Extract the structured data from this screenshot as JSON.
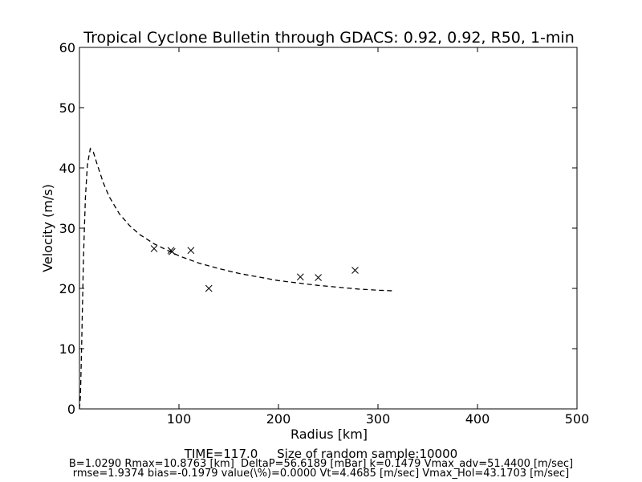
{
  "chart_data": {
    "type": "scatter",
    "title": "Tropical Cyclone Bulletin through GDACS: 0.92, 0.92, R50, 1-min",
    "xlabel": "Radius [km]",
    "ylabel": "Velocity (m/s)",
    "xlim": [
      0,
      500
    ],
    "ylim": [
      0,
      60
    ],
    "xticks": [
      100,
      200,
      300,
      400,
      500
    ],
    "yticks": [
      0,
      10,
      20,
      30,
      40,
      50,
      60
    ],
    "grid": false,
    "legend": "none",
    "series": [
      {
        "marker": "x",
        "x": [
          75,
          92,
          93,
          112,
          130,
          222,
          240,
          277
        ],
        "y": [
          26.6,
          26.3,
          26.1,
          26.3,
          20.0,
          21.9,
          21.8,
          23.0
        ]
      },
      {
        "style": "dashed-line",
        "x": [
          0,
          1,
          2,
          4,
          6,
          8,
          10.88,
          14,
          18,
          24,
          30,
          40,
          50,
          60,
          75,
          90,
          100,
          120,
          140,
          160,
          180,
          200,
          220,
          240,
          260,
          280,
          300,
          315
        ],
        "y": [
          0,
          2,
          9,
          25,
          35,
          40.5,
          43.2,
          42.6,
          40.5,
          37.5,
          35.2,
          32.4,
          30.5,
          29.0,
          27.4,
          26.2,
          25.4,
          24.2,
          23.3,
          22.5,
          21.9,
          21.3,
          20.9,
          20.5,
          20.2,
          19.9,
          19.7,
          19.6
        ]
      }
    ]
  },
  "footer": {
    "time": "TIME=117.0     Size of random sample:10000",
    "line1": "B=1.0290 Rmax=10.8763 [km]  DeltaP=56.6189 [mBar] k=0.1479 Vmax_adv=51.4400 [m/sec]",
    "line2": "rmse=1.9374 bias=-0.1979 value(\\%)=0.0000 Vt=4.4685 [m/sec] Vmax_Hol=43.1703 [m/sec]"
  }
}
